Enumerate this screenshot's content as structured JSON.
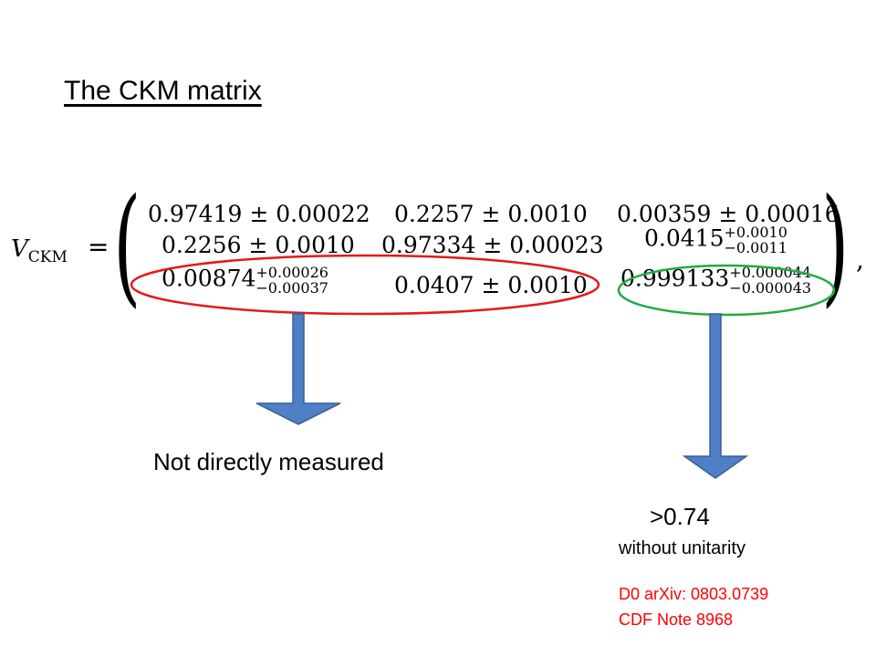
{
  "title": "The CKM matrix",
  "matrix": {
    "symbol": "V",
    "subscript": "CKM",
    "equals": "=",
    "comma": ",",
    "rows": [
      [
        {
          "main": "0.97419 ± 0.00022"
        },
        {
          "main": "0.2257 ± 0.0010"
        },
        {
          "main": "0.00359 ± 0.00016"
        }
      ],
      [
        {
          "main": "0.2256 ± 0.0010"
        },
        {
          "main": "0.97334 ± 0.00023"
        },
        {
          "main": "0.0415",
          "up": "+0.0010",
          "down": "−0.0011"
        }
      ],
      [
        {
          "main": "0.00874",
          "up": "+0.00026",
          "down": "−0.00037"
        },
        {
          "main": "0.0407 ± 0.0010"
        },
        {
          "main": "0.999133",
          "up": "+0.000044",
          "down": "−0.000043"
        }
      ]
    ]
  },
  "annotations": {
    "left_text": "Not directly measured",
    "right_value": ">0.74",
    "right_sub": "without unitarity",
    "ref1": "D0  arXiv: 0803.0739",
    "ref2": "CDF Note 8968"
  },
  "colors": {
    "red_ellipse": "#e41a1a",
    "green_ellipse": "#22aa44",
    "arrow_fill": "#4f7fc4",
    "arrow_stroke": "#3a5f96",
    "reference_text": "#ff0000"
  }
}
